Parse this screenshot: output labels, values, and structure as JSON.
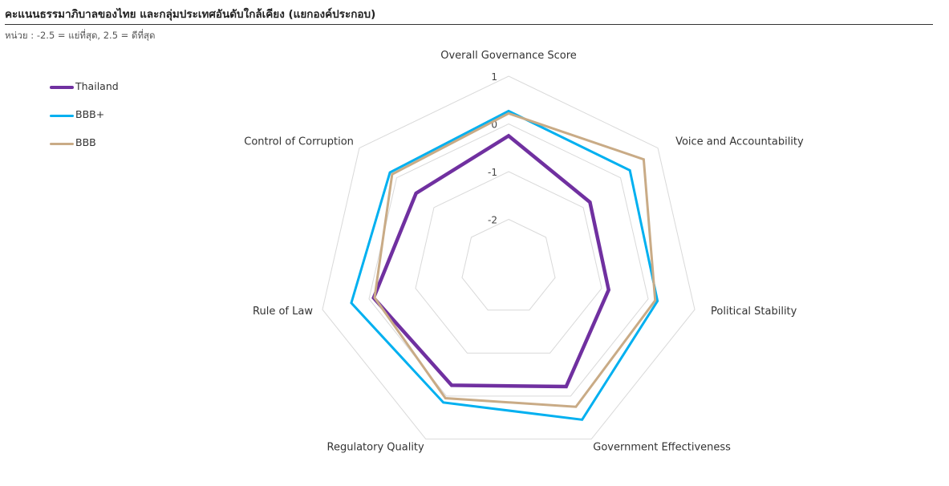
{
  "title": "คะแนนธรรมาภิบาลของไทย และกลุ่มประเทศอันดับใกล้เคียง (แยกองค์ประกอบ)",
  "unit_note": "หน่วย : -2.5 = แย่ที่สุด, 2.5 = ดีที่สุด",
  "chart_data": {
    "type": "radar",
    "axes": [
      "Overall Governance Score",
      "Voice and Accountability",
      "Political Stability",
      "Government Effectiveness",
      "Regulatory Quality",
      "Rule of Law",
      "Control of Corruption"
    ],
    "ticks": [
      1,
      0,
      -1,
      -2
    ],
    "rlim": [
      -3,
      1
    ],
    "series": [
      {
        "name": "Thailand",
        "color": "#7030a0",
        "values": [
          -0.25,
          -0.82,
          -0.85,
          -0.22,
          -0.25,
          -0.1,
          -0.52
        ]
      },
      {
        "name": "BBB+",
        "color": "#00b0f0",
        "values": [
          0.27,
          0.25,
          0.2,
          0.55,
          0.15,
          0.38,
          0.18
        ]
      },
      {
        "name": "BBB",
        "color": "#c9ab86",
        "values": [
          0.22,
          0.62,
          0.15,
          0.25,
          0.05,
          -0.12,
          0.12
        ]
      }
    ],
    "grid": true,
    "legend_position": "top-left"
  }
}
